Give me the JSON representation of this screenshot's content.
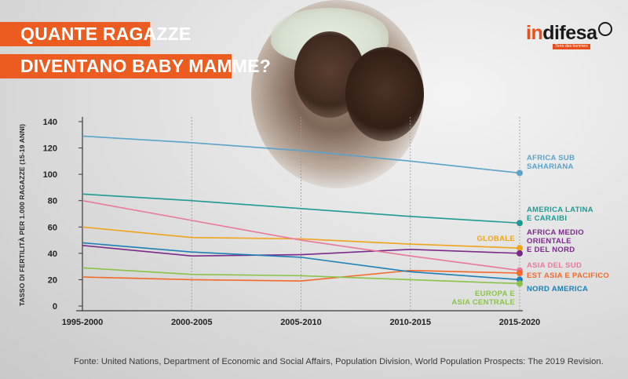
{
  "header": {
    "title_line1": "QUANTE RAGAZZE",
    "title_line2": "DIVENTANO BABY MAMME?"
  },
  "logo": {
    "name_part1": "in",
    "name_part2": "difesa",
    "tagline": "Terre des hommes",
    "icon": "magnifier-icon"
  },
  "photo": {
    "icon": "photo-mother-child"
  },
  "footer": {
    "source": "Fonte: United Nations, Department of Economic and Social Affairs, Population Division, World Population Prospects: The 2019 Revision."
  },
  "colors": {
    "accent": "#ec5b1f"
  },
  "chart_data": {
    "type": "line",
    "ylabel": "TASSO DI FERTILITÀ PER 1.000 RAGAZZE (15-19 ANNI)",
    "xlabel": "",
    "ylim": [
      0,
      140
    ],
    "yticks": [
      0,
      20,
      40,
      60,
      80,
      100,
      120,
      140
    ],
    "categories": [
      "1995-2000",
      "2000-2005",
      "2005-2010",
      "2010-2015",
      "2015-2020"
    ],
    "grid": "vertical",
    "series": [
      {
        "name": "AFRICA SUB SAHARIANA",
        "label_lines": [
          "AFRICA SUB",
          "SAHARIANA"
        ],
        "color": "#5ba3c9",
        "values": [
          129,
          124,
          118,
          110,
          101
        ]
      },
      {
        "name": "AMERICA LATINA E CARAIBI",
        "label_lines": [
          "AMERICA LATINA",
          "E CARAIBI"
        ],
        "color": "#1f9a93",
        "values": [
          85,
          80,
          74,
          68,
          63
        ]
      },
      {
        "name": "GLOBALE",
        "label_lines": [
          "GLOBALE"
        ],
        "color": "#f0a31c",
        "values": [
          60,
          52,
          51,
          47,
          44
        ]
      },
      {
        "name": "AFRICA MEDIO ORIENTALE E DEL NORD",
        "label_lines": [
          "AFRICA MEDIO",
          "ORIENTALE",
          "E DEL NORD"
        ],
        "color": "#7b2a8a",
        "values": [
          46,
          38,
          39,
          43,
          40
        ]
      },
      {
        "name": "ASIA DEL SUD",
        "label_lines": [
          "ASIA DEL SUD"
        ],
        "color": "#e8799a",
        "values": [
          80,
          65,
          50,
          38,
          27
        ]
      },
      {
        "name": "EST ASIA E PACIFICO",
        "label_lines": [
          "EST ASIA E PACIFICO"
        ],
        "color": "#f26a2b",
        "values": [
          22,
          20,
          19,
          27,
          25
        ]
      },
      {
        "name": "NORD AMERICA",
        "label_lines": [
          "NORD AMERICA"
        ],
        "color": "#1c7fb5",
        "values": [
          48,
          41,
          37,
          26,
          20
        ]
      },
      {
        "name": "EUROPA E ASIA CENTRALE",
        "label_lines": [
          "EUROPA E",
          "ASIA CENTRALE"
        ],
        "color": "#8bc34a",
        "values": [
          29,
          24,
          23,
          20,
          17
        ]
      }
    ]
  }
}
